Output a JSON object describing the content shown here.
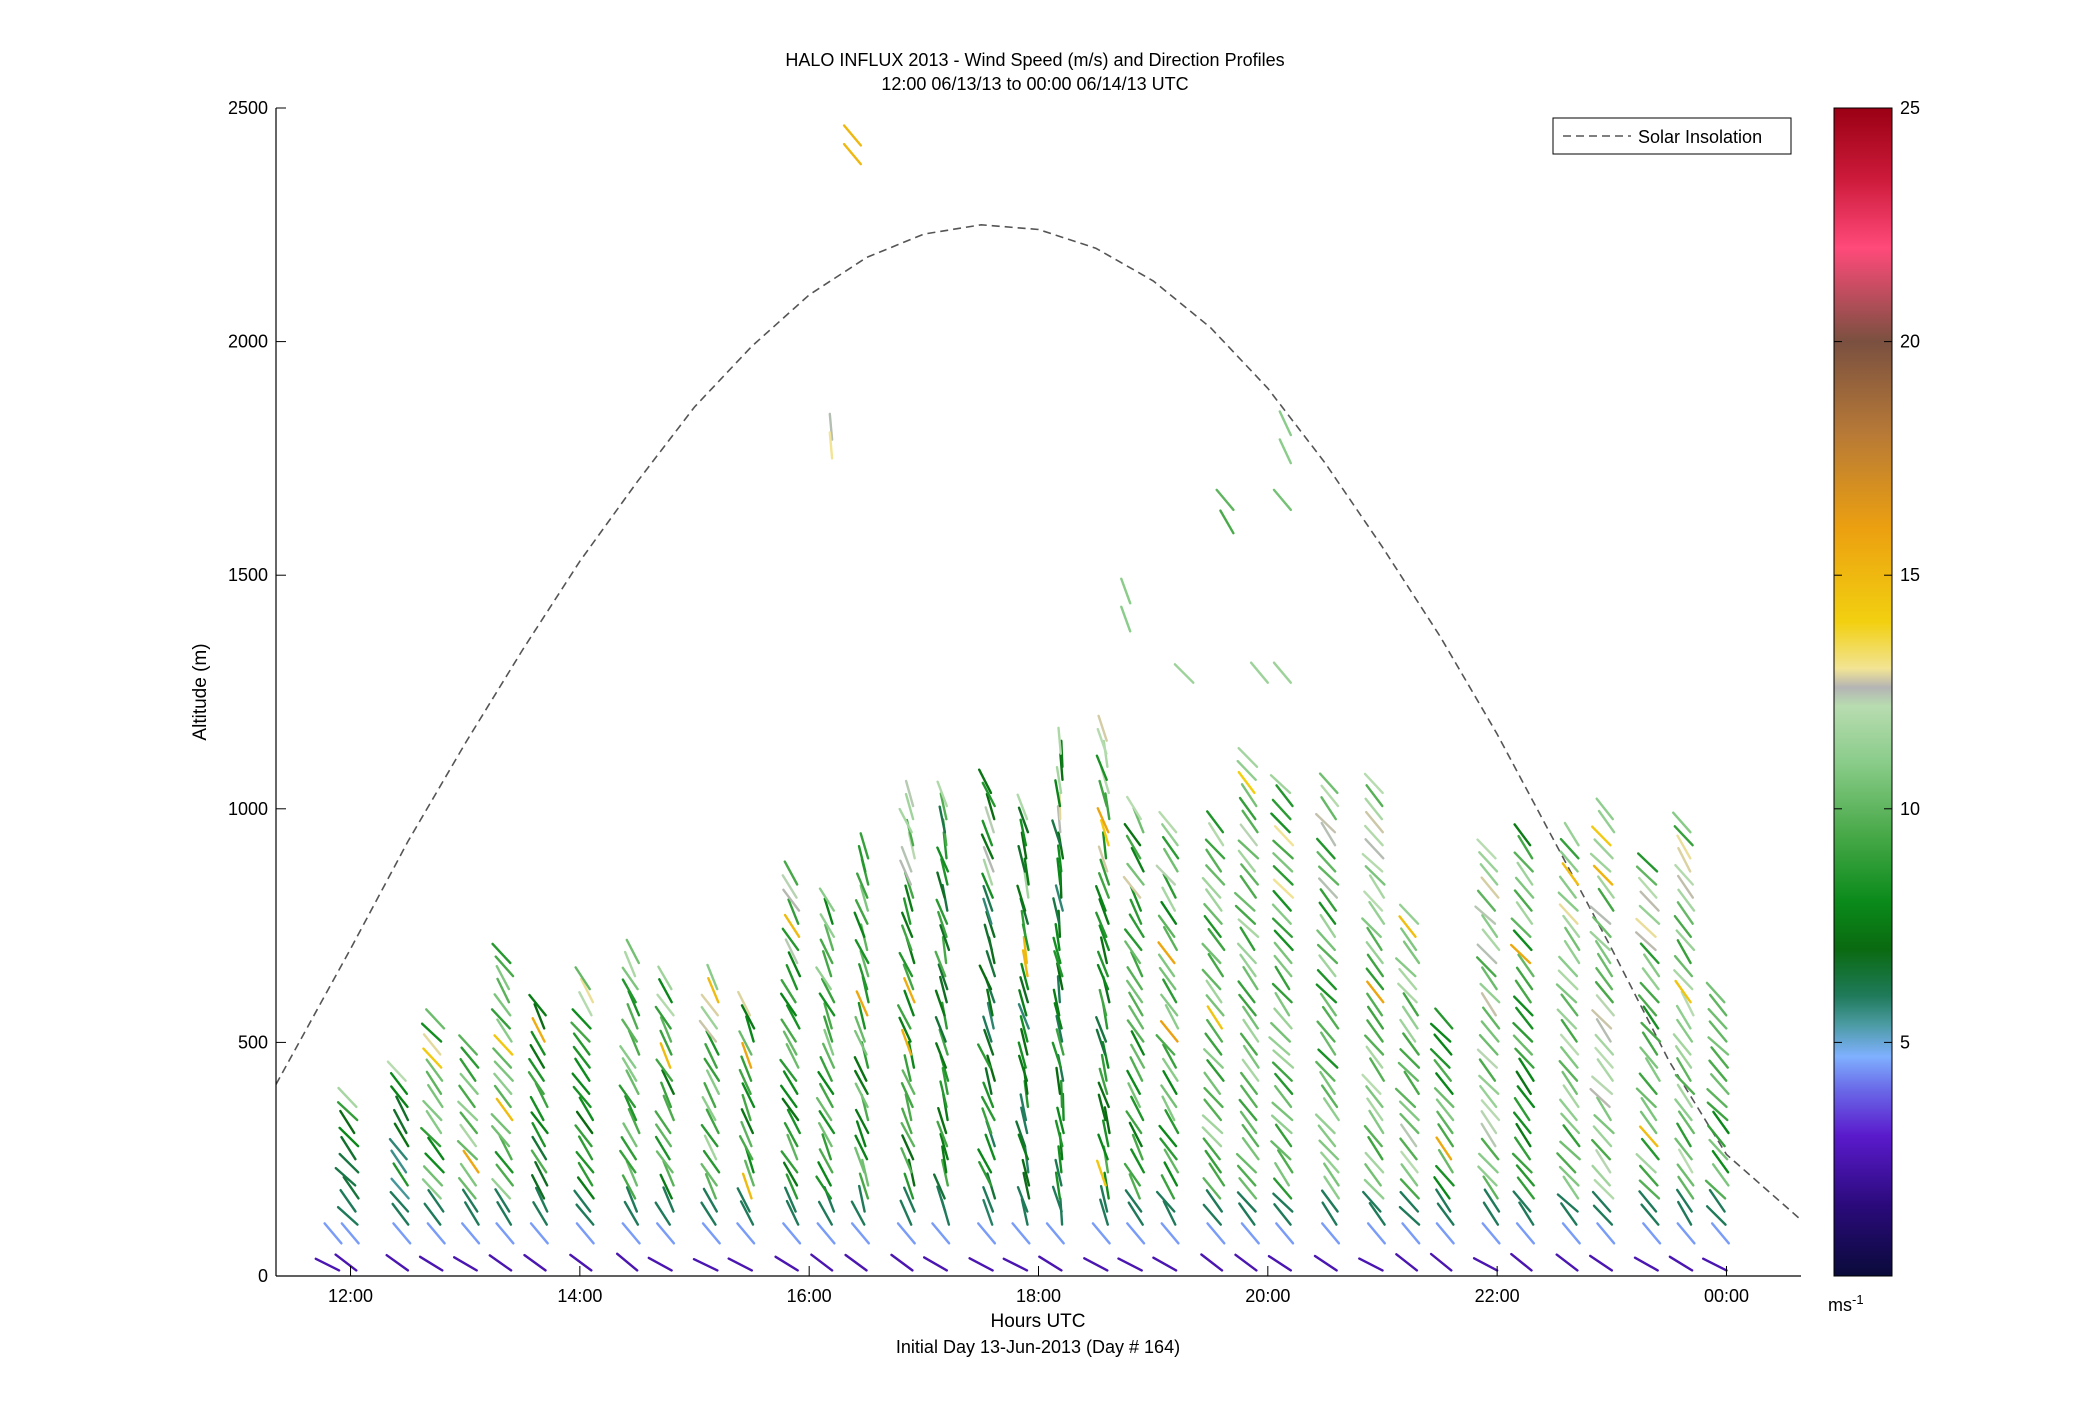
{
  "chart_data": {
    "type": "scatter",
    "title_line1": "HALO INFLUX 2013 - Wind Speed (m/s) and Direction Profiles",
    "title_line2": "12:00 06/13/13 to 00:00 06/14/13  UTC",
    "xlabel": "Hours UTC",
    "xlabel2": "Initial Day 13-Jun-2013 (Day # 164)",
    "ylabel": "Altitude (m)",
    "x_unit": "hours UTC (12 = 12:00 on 13-Jun, 24 = 00:00 on 14-Jun)",
    "xlim": [
      11.35,
      24.65
    ],
    "ylim": [
      0,
      2500
    ],
    "x_ticks": [
      12,
      14,
      16,
      18,
      20,
      22,
      24
    ],
    "x_tick_labels": [
      "12:00",
      "14:00",
      "16:00",
      "18:00",
      "20:00",
      "22:00",
      "00:00"
    ],
    "y_ticks": [
      0,
      500,
      1000,
      1500,
      2000,
      2500
    ],
    "y_tick_labels": [
      "0",
      "500",
      "1000",
      "1500",
      "2000",
      "2500"
    ],
    "legend": {
      "position": "top-right",
      "entries": [
        {
          "label": "Solar Insolation",
          "style": "dashed",
          "color": "#555555"
        }
      ]
    },
    "colorbar": {
      "range": [
        0,
        25
      ],
      "ticks": [
        5,
        10,
        15,
        20,
        25
      ],
      "tick_labels": [
        "5",
        "10",
        "15",
        "20",
        "25"
      ],
      "unit_label": "ms",
      "unit_exponent": "-1",
      "stops": [
        {
          "v": 0,
          "c": "#0a0a3a"
        },
        {
          "v": 1.5,
          "c": "#2a0a7a"
        },
        {
          "v": 3,
          "c": "#5a1acc"
        },
        {
          "v": 4,
          "c": "#6a6ae8"
        },
        {
          "v": 4.7,
          "c": "#7fb0ff"
        },
        {
          "v": 5.4,
          "c": "#4a9aa0"
        },
        {
          "v": 6,
          "c": "#1f7a5a"
        },
        {
          "v": 7,
          "c": "#0a6a10"
        },
        {
          "v": 8,
          "c": "#0a8a1a"
        },
        {
          "v": 9.5,
          "c": "#4aaa4a"
        },
        {
          "v": 11,
          "c": "#8acc8a"
        },
        {
          "v": 12.2,
          "c": "#b8dcb0"
        },
        {
          "v": 12.6,
          "c": "#b4b4b4"
        },
        {
          "v": 13,
          "c": "#f2e494"
        },
        {
          "v": 14,
          "c": "#f2d010"
        },
        {
          "v": 16,
          "c": "#eca010"
        },
        {
          "v": 18,
          "c": "#b87a36"
        },
        {
          "v": 20,
          "c": "#7a5040"
        },
        {
          "v": 22,
          "c": "#ff4a7a"
        },
        {
          "v": 23.5,
          "c": "#cc1a3a"
        },
        {
          "v": 25,
          "c": "#9a0014"
        }
      ]
    },
    "solar_insolation": {
      "name": "Solar Insolation",
      "peak_time": 17.6,
      "peak_altitude": 2250,
      "x": [
        11.35,
        12.0,
        12.5,
        13.0,
        13.5,
        14.0,
        14.5,
        15.0,
        15.5,
        16.0,
        16.5,
        17.0,
        17.5,
        18.0,
        18.5,
        19.0,
        19.5,
        20.0,
        20.5,
        21.0,
        21.5,
        22.0,
        22.5,
        23.0,
        23.5,
        24.0,
        24.65
      ],
      "y": [
        410,
        700,
        930,
        1140,
        1340,
        1530,
        1700,
        1860,
        1990,
        2100,
        2180,
        2230,
        2250,
        2240,
        2200,
        2130,
        2030,
        1900,
        1740,
        1560,
        1370,
        1160,
        930,
        700,
        460,
        260,
        120
      ]
    },
    "profiles": [
      {
        "time": 11.9,
        "top": 40,
        "speed": 2.0,
        "dir": 285
      },
      {
        "time": 12.05,
        "top": 380,
        "speed": 7.5,
        "dir": 320
      },
      {
        "time": 12.5,
        "top": 440,
        "speed": 7.0,
        "dir": 325
      },
      {
        "time": 12.8,
        "top": 540,
        "speed": 9.5,
        "dir": 320
      },
      {
        "time": 13.1,
        "top": 500,
        "speed": 10.5,
        "dir": 320
      },
      {
        "time": 13.4,
        "top": 680,
        "speed": 10.0,
        "dir": 325
      },
      {
        "time": 13.7,
        "top": 580,
        "speed": 8.0,
        "dir": 330
      },
      {
        "time": 14.1,
        "top": 640,
        "speed": 8.5,
        "dir": 325
      },
      {
        "time": 14.5,
        "top": 680,
        "speed": 9.5,
        "dir": 330
      },
      {
        "time": 14.8,
        "top": 640,
        "speed": 9.0,
        "dir": 330
      },
      {
        "time": 15.2,
        "top": 640,
        "speed": 10.0,
        "dir": 330
      },
      {
        "time": 15.5,
        "top": 560,
        "speed": 9.0,
        "dir": 335
      },
      {
        "time": 15.9,
        "top": 850,
        "speed": 9.0,
        "dir": 330
      },
      {
        "time": 16.2,
        "top": 800,
        "speed": 9.5,
        "dir": 335
      },
      {
        "time": 16.5,
        "top": 910,
        "speed": 9.0,
        "dir": 340
      },
      {
        "time": 16.9,
        "top": 1010,
        "speed": 8.5,
        "dir": 340
      },
      {
        "time": 17.2,
        "top": 1010,
        "speed": 8.0,
        "dir": 345
      },
      {
        "time": 17.6,
        "top": 1050,
        "speed": 7.5,
        "dir": 340
      },
      {
        "time": 17.9,
        "top": 1000,
        "speed": 7.5,
        "dir": 345
      },
      {
        "time": 18.2,
        "top": 1140,
        "speed": 7.5,
        "dir": 350
      },
      {
        "time": 18.6,
        "top": 1150,
        "speed": 8.0,
        "dir": 345
      },
      {
        "time": 18.9,
        "top": 1000,
        "speed": 9.0,
        "dir": 330
      },
      {
        "time": 19.2,
        "top": 950,
        "speed": 9.5,
        "dir": 325
      },
      {
        "time": 19.6,
        "top": 950,
        "speed": 10.0,
        "dir": 320
      },
      {
        "time": 19.9,
        "top": 1100,
        "speed": 10.5,
        "dir": 320
      },
      {
        "time": 20.2,
        "top": 1050,
        "speed": 10.0,
        "dir": 320
      },
      {
        "time": 20.6,
        "top": 1050,
        "speed": 10.0,
        "dir": 320
      },
      {
        "time": 21.0,
        "top": 1050,
        "speed": 10.5,
        "dir": 320
      },
      {
        "time": 21.3,
        "top": 770,
        "speed": 11.0,
        "dir": 320
      },
      {
        "time": 21.6,
        "top": 530,
        "speed": 9.5,
        "dir": 320
      },
      {
        "time": 22.0,
        "top": 900,
        "speed": 11.0,
        "dir": 320
      },
      {
        "time": 22.3,
        "top": 930,
        "speed": 9.0,
        "dir": 320
      },
      {
        "time": 22.7,
        "top": 940,
        "speed": 10.5,
        "dir": 320
      },
      {
        "time": 23.0,
        "top": 990,
        "speed": 11.0,
        "dir": 320
      },
      {
        "time": 23.4,
        "top": 870,
        "speed": 10.0,
        "dir": 320
      },
      {
        "time": 23.7,
        "top": 950,
        "speed": 10.5,
        "dir": 325
      },
      {
        "time": 24.0,
        "top": 600,
        "speed": 9.0,
        "dir": 320
      }
    ],
    "isolated_barbs": [
      {
        "time": 16.45,
        "alt": 2420,
        "speed": 15.0,
        "dir": 320
      },
      {
        "time": 16.45,
        "alt": 2380,
        "speed": 15.0,
        "dir": 320
      },
      {
        "time": 16.2,
        "alt": 1790,
        "speed": 12.5,
        "dir": 355
      },
      {
        "time": 16.2,
        "alt": 1750,
        "speed": 13.0,
        "dir": 355
      },
      {
        "time": 18.8,
        "alt": 1440,
        "speed": 11.0,
        "dir": 340
      },
      {
        "time": 18.8,
        "alt": 1380,
        "speed": 11.0,
        "dir": 340
      },
      {
        "time": 19.35,
        "alt": 1270,
        "speed": 11.5,
        "dir": 315
      },
      {
        "time": 19.7,
        "alt": 1640,
        "speed": 10.0,
        "dir": 320
      },
      {
        "time": 19.7,
        "alt": 1590,
        "speed": 9.5,
        "dir": 330
      },
      {
        "time": 20.0,
        "alt": 1270,
        "speed": 11.5,
        "dir": 320
      },
      {
        "time": 20.2,
        "alt": 1270,
        "speed": 11.5,
        "dir": 320
      },
      {
        "time": 20.2,
        "alt": 1640,
        "speed": 10.5,
        "dir": 320
      },
      {
        "time": 20.2,
        "alt": 1800,
        "speed": 11.0,
        "dir": 335
      },
      {
        "time": 20.2,
        "alt": 1740,
        "speed": 11.0,
        "dir": 335
      }
    ]
  }
}
